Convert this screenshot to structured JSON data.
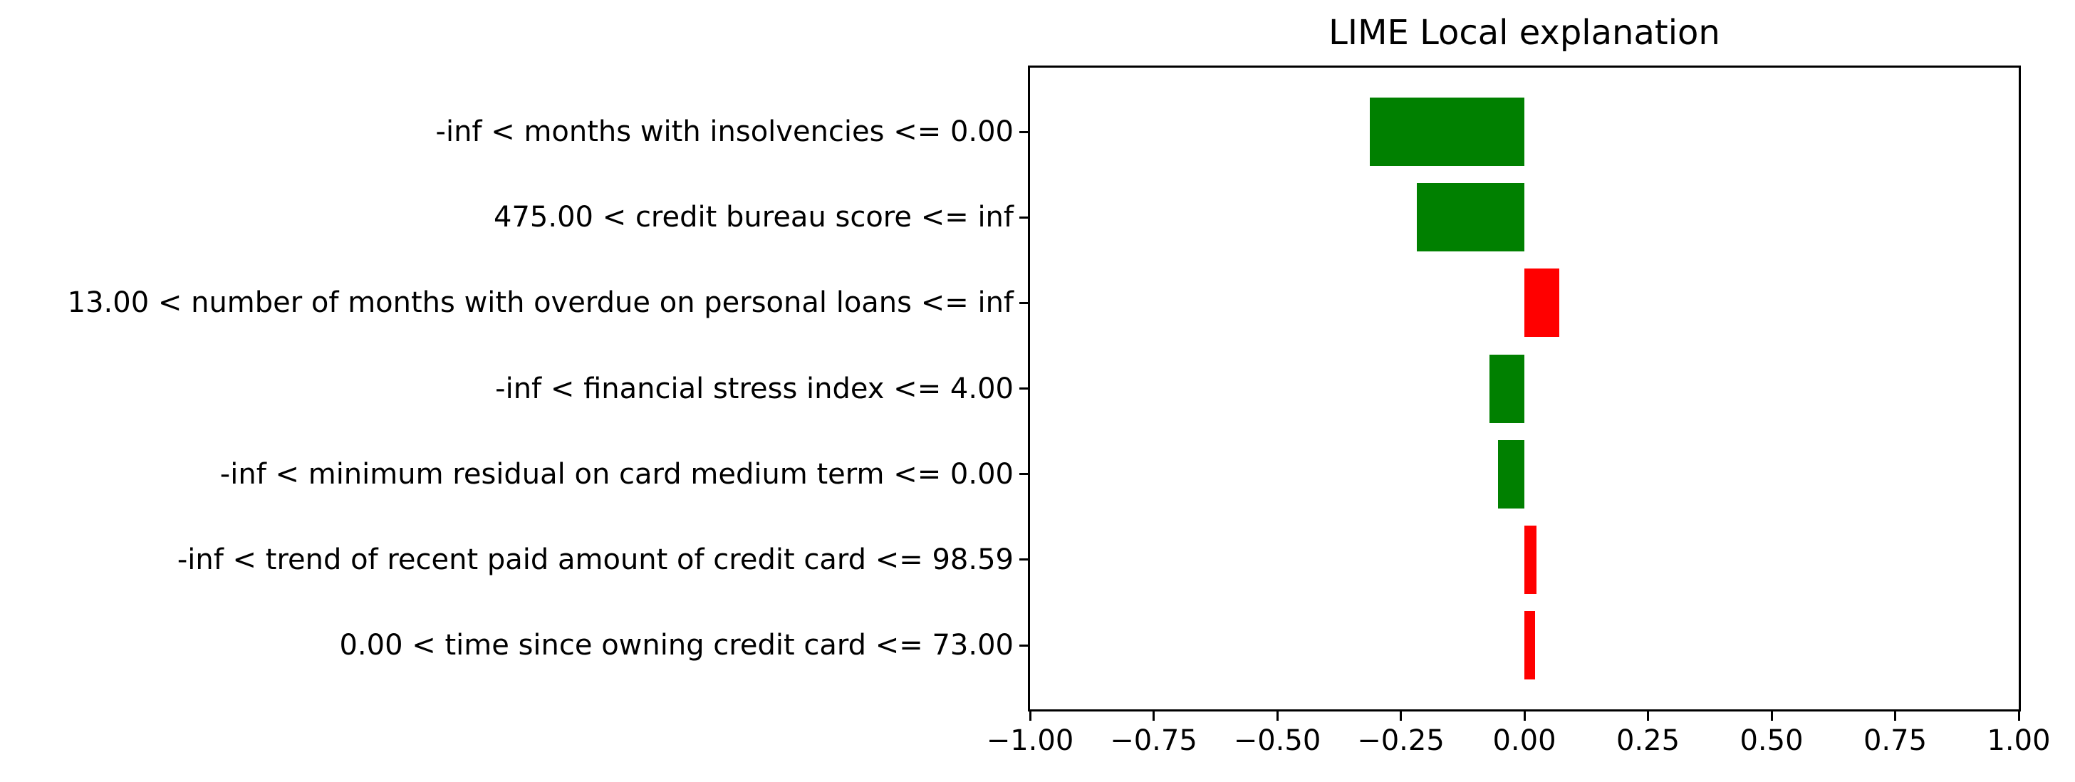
{
  "chart_data": {
    "type": "bar",
    "orientation": "horizontal",
    "title": "LIME Local explanation",
    "categories": [
      "-inf < months with insolvencies <= 0.00",
      "475.00 < credit bureau score <= inf",
      "13.00 < number of months with overdue on personal loans <= inf",
      "-inf < financial stress index <= 4.00",
      "-inf < minimum residual on card medium term <= 0.00",
      "-inf < trend of recent paid amount of credit card <= 98.59",
      "0.00 < time since owning credit card <= 73.00"
    ],
    "values": [
      -0.313,
      -0.218,
      0.07,
      -0.07,
      -0.053,
      0.024,
      0.021
    ],
    "colors": {
      "positive": "#ff0000",
      "negative": "#008000",
      "text": "#000000",
      "background": "#ffffff"
    },
    "xlim": [
      -1.0,
      1.0
    ],
    "x_tick_values": [
      -1.0,
      -0.75,
      -0.5,
      -0.25,
      0.0,
      0.25,
      0.5,
      0.75,
      1.0
    ],
    "x_tick_labels": [
      "−1.00",
      "−0.75",
      "−0.50",
      "−0.25",
      "0.00",
      "0.25",
      "0.50",
      "0.75",
      "1.00"
    ],
    "xlabel": "",
    "ylabel": "",
    "legend": "none",
    "grid": false
  }
}
